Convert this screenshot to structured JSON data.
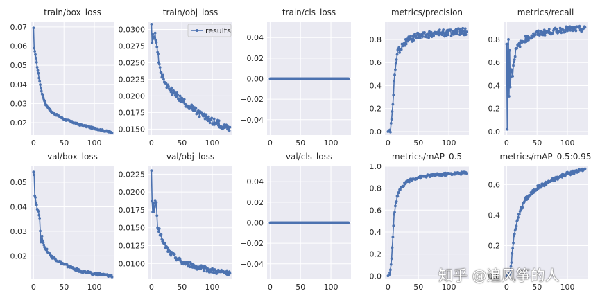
{
  "watermark": "知乎 @追风筝的人",
  "legend_label": "results",
  "colors": {
    "series": "#4c72b0",
    "panel_bg": "#eaeaf2",
    "grid": "#ffffff",
    "text": "#262626"
  },
  "chart_data": [
    {
      "type": "line",
      "title": "train/box_loss",
      "xlim": [
        -5,
        133
      ],
      "ylim": [
        0.0135,
        0.0725
      ],
      "xticks": [
        0,
        50,
        100
      ],
      "yticks": [
        0.02,
        0.03,
        0.04,
        0.05,
        0.06,
        0.07
      ],
      "ytick_labels": [
        "0.02",
        "0.03",
        "0.04",
        "0.05",
        "0.06",
        "0.07"
      ],
      "shape": {
        "start": 0.0695,
        "end": 0.0148,
        "k": 0.055,
        "noise": 0.0004
      },
      "anchors": [
        [
          0,
          0.0695
        ],
        [
          1,
          0.0589
        ],
        [
          2,
          0.0573
        ],
        [
          3,
          0.0556
        ],
        [
          5,
          0.0512
        ],
        [
          8,
          0.0455
        ],
        [
          12,
          0.038
        ],
        [
          15,
          0.034
        ],
        [
          20,
          0.0295
        ],
        [
          30,
          0.0255
        ],
        [
          50,
          0.0218
        ],
        [
          75,
          0.019
        ],
        [
          100,
          0.017
        ],
        [
          129,
          0.0148
        ]
      ]
    },
    {
      "type": "line",
      "title": "train/obj_loss",
      "xlim": [
        -5,
        133
      ],
      "ylim": [
        0.0141,
        0.0311
      ],
      "xticks": [
        0,
        50,
        100
      ],
      "yticks": [
        0.015,
        0.0175,
        0.02,
        0.0225,
        0.025,
        0.0275,
        0.03
      ],
      "ytick_labels": [
        "0.0150",
        "0.0175",
        "0.0200",
        "0.0225",
        "0.0250",
        "0.0275",
        "0.0300"
      ],
      "legend": true,
      "shape": {
        "start": 0.0305,
        "end": 0.0151,
        "k": 0.03,
        "noise": 0.0005
      },
      "anchors": [
        [
          0,
          0.0308
        ],
        [
          1,
          0.028
        ],
        [
          2,
          0.0293
        ],
        [
          4,
          0.0285
        ],
        [
          6,
          0.0291
        ],
        [
          8,
          0.0283
        ],
        [
          10,
          0.027
        ],
        [
          12,
          0.025
        ],
        [
          15,
          0.0238
        ],
        [
          20,
          0.0225
        ],
        [
          30,
          0.021
        ],
        [
          50,
          0.0193
        ],
        [
          75,
          0.0175
        ],
        [
          100,
          0.0162
        ],
        [
          129,
          0.0151
        ]
      ]
    },
    {
      "type": "line",
      "title": "train/cls_loss",
      "xlim": [
        -5,
        133
      ],
      "ylim": [
        -0.055,
        0.055
      ],
      "xticks": [
        0,
        50,
        100
      ],
      "yticks": [
        -0.04,
        -0.02,
        0,
        0.02,
        0.04
      ],
      "ytick_labels": [
        "−0.04",
        "−0.02",
        "0.00",
        "0.02",
        "0.04"
      ],
      "shape": {
        "start": 0,
        "end": 0,
        "k": 0.1,
        "noise": 0
      }
    },
    {
      "type": "line",
      "title": "metrics/precision",
      "xlim": [
        -5,
        133
      ],
      "ylim": [
        -0.03,
        0.95
      ],
      "xticks": [
        0,
        50,
        100
      ],
      "yticks": [
        0,
        0.2,
        0.4,
        0.6,
        0.8
      ],
      "ytick_labels": [
        "0.0",
        "0.2",
        "0.4",
        "0.6",
        "0.8"
      ],
      "shape": {
        "start": 0.0,
        "end": 0.88,
        "k": 0.04,
        "noise": 0.03
      },
      "anchors": [
        [
          0,
          0.0
        ],
        [
          2,
          0.01
        ],
        [
          4,
          0.02
        ],
        [
          6,
          0.11
        ],
        [
          8,
          0.21
        ],
        [
          10,
          0.44
        ],
        [
          12,
          0.55
        ],
        [
          14,
          0.62
        ],
        [
          16,
          0.7
        ],
        [
          20,
          0.72
        ],
        [
          25,
          0.76
        ],
        [
          35,
          0.8
        ],
        [
          50,
          0.83
        ],
        [
          75,
          0.85
        ],
        [
          100,
          0.86
        ],
        [
          129,
          0.87
        ]
      ]
    },
    {
      "type": "line",
      "title": "metrics/recall",
      "xlim": [
        -5,
        133
      ],
      "ylim": [
        -0.03,
        0.95
      ],
      "xticks": [
        0,
        50,
        100
      ],
      "yticks": [
        0,
        0.2,
        0.4,
        0.6,
        0.8
      ],
      "ytick_labels": [
        "0.0",
        "0.2",
        "0.4",
        "0.6",
        "0.8"
      ],
      "shape": {
        "start": 0.0,
        "end": 0.89,
        "k": 0.05,
        "noise": 0.025
      },
      "anchors": [
        [
          0,
          0.76
        ],
        [
          1,
          0.02
        ],
        [
          2,
          0.76
        ],
        [
          3,
          0.8
        ],
        [
          4,
          0.29
        ],
        [
          5,
          0.72
        ],
        [
          6,
          0.4
        ],
        [
          8,
          0.55
        ],
        [
          10,
          0.5
        ],
        [
          12,
          0.62
        ],
        [
          15,
          0.7
        ],
        [
          20,
          0.75
        ],
        [
          30,
          0.8
        ],
        [
          50,
          0.85
        ],
        [
          75,
          0.87
        ],
        [
          100,
          0.89
        ],
        [
          129,
          0.89
        ]
      ]
    },
    {
      "type": "line",
      "title": "val/box_loss",
      "xlim": [
        -5,
        133
      ],
      "ylim": [
        0.0105,
        0.0565
      ],
      "xticks": [
        0,
        50,
        100
      ],
      "yticks": [
        0.02,
        0.03,
        0.04,
        0.05
      ],
      "ytick_labels": [
        "0.02",
        "0.03",
        "0.04",
        "0.05"
      ],
      "shape": {
        "start": 0.054,
        "end": 0.0115,
        "k": 0.045,
        "noise": 0.0005
      },
      "anchors": [
        [
          0,
          0.0542
        ],
        [
          1,
          0.053
        ],
        [
          2,
          0.0445
        ],
        [
          3,
          0.0438
        ],
        [
          4,
          0.0415
        ],
        [
          6,
          0.0395
        ],
        [
          8,
          0.038
        ],
        [
          10,
          0.035
        ],
        [
          12,
          0.026
        ],
        [
          14,
          0.028
        ],
        [
          16,
          0.025
        ],
        [
          20,
          0.023
        ],
        [
          30,
          0.0195
        ],
        [
          50,
          0.0165
        ],
        [
          75,
          0.014
        ],
        [
          100,
          0.0127
        ],
        [
          129,
          0.0117
        ]
      ]
    },
    {
      "type": "line",
      "title": "val/obj_loss",
      "xlim": [
        -5,
        133
      ],
      "ylim": [
        0.0078,
        0.0236
      ],
      "xticks": [
        0,
        50,
        100
      ],
      "yticks": [
        0.01,
        0.0125,
        0.015,
        0.0175,
        0.02,
        0.0225
      ],
      "ytick_labels": [
        "0.0100",
        "0.0125",
        "0.0150",
        "0.0175",
        "0.0200",
        "0.0225"
      ],
      "shape": {
        "start": 0.0185,
        "end": 0.0087,
        "k": 0.03,
        "noise": 0.00035
      },
      "anchors": [
        [
          0,
          0.023
        ],
        [
          1,
          0.0187
        ],
        [
          2,
          0.0172
        ],
        [
          3,
          0.0185
        ],
        [
          4,
          0.0174
        ],
        [
          6,
          0.0186
        ],
        [
          8,
          0.0182
        ],
        [
          10,
          0.015
        ],
        [
          12,
          0.0148
        ],
        [
          15,
          0.014
        ],
        [
          20,
          0.0128
        ],
        [
          30,
          0.0115
        ],
        [
          50,
          0.0102
        ],
        [
          75,
          0.0095
        ],
        [
          100,
          0.009
        ],
        [
          129,
          0.0086
        ]
      ]
    },
    {
      "type": "line",
      "title": "val/cls_loss",
      "xlim": [
        -5,
        133
      ],
      "ylim": [
        -0.055,
        0.055
      ],
      "xticks": [
        0,
        50,
        100
      ],
      "yticks": [
        -0.04,
        -0.02,
        0,
        0.02,
        0.04
      ],
      "ytick_labels": [
        "−0.04",
        "−0.02",
        "0.00",
        "0.02",
        "0.04"
      ],
      "shape": {
        "start": 0,
        "end": 0,
        "k": 0.1,
        "noise": 0
      }
    },
    {
      "type": "line",
      "title": "metrics/mAP_0.5",
      "xlim": [
        -5,
        133
      ],
      "ylim": [
        -0.03,
        1.0
      ],
      "xticks": [
        0,
        50,
        100
      ],
      "yticks": [
        0,
        0.2,
        0.4,
        0.6,
        0.8,
        1.0
      ],
      "ytick_labels": [
        "0.0",
        "0.2",
        "0.4",
        "0.6",
        "0.8",
        "1.0"
      ],
      "shape": {
        "start": 0.0,
        "end": 0.94,
        "k": 0.05,
        "noise": 0.012
      },
      "anchors": [
        [
          0,
          0.0
        ],
        [
          2,
          0.01
        ],
        [
          4,
          0.05
        ],
        [
          6,
          0.16
        ],
        [
          8,
          0.35
        ],
        [
          10,
          0.55
        ],
        [
          12,
          0.63
        ],
        [
          15,
          0.72
        ],
        [
          20,
          0.79
        ],
        [
          30,
          0.86
        ],
        [
          50,
          0.9
        ],
        [
          75,
          0.92
        ],
        [
          100,
          0.93
        ],
        [
          129,
          0.94
        ]
      ]
    },
    {
      "type": "line",
      "title": "metrics/mAP_0.5:0.95",
      "xlim": [
        -5,
        133
      ],
      "ylim": [
        -0.02,
        0.72
      ],
      "xticks": [
        0,
        50,
        100
      ],
      "yticks": [
        0,
        0.2,
        0.4,
        0.6
      ],
      "ytick_labels": [
        "0.0",
        "0.2",
        "0.4",
        "0.6"
      ],
      "shape": {
        "start": 0.0,
        "end": 0.7,
        "k": 0.03,
        "noise": 0.012
      },
      "anchors": [
        [
          0,
          0.0
        ],
        [
          3,
          0.01
        ],
        [
          6,
          0.03
        ],
        [
          8,
          0.1
        ],
        [
          10,
          0.18
        ],
        [
          12,
          0.26
        ],
        [
          15,
          0.32
        ],
        [
          20,
          0.4
        ],
        [
          30,
          0.5
        ],
        [
          50,
          0.58
        ],
        [
          75,
          0.63
        ],
        [
          100,
          0.67
        ],
        [
          129,
          0.7
        ]
      ]
    }
  ]
}
